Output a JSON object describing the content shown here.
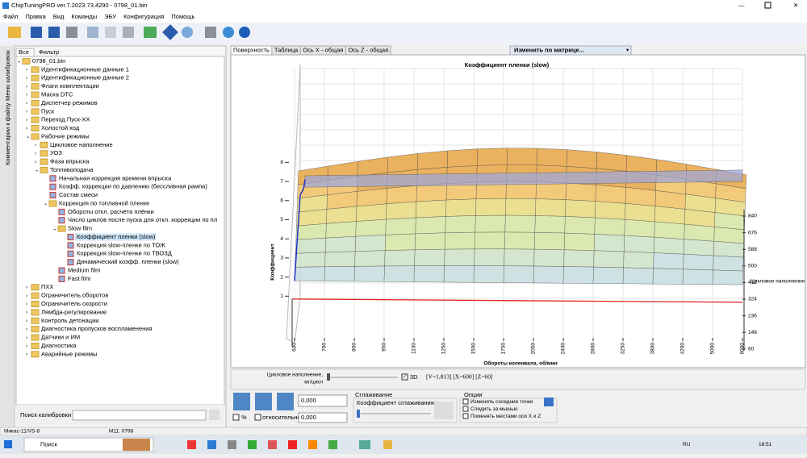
{
  "window": {
    "title": "ChipTuningPRO ver.7.2023.73.4290 - 0798_01.bin"
  },
  "menu": [
    "Файл",
    "Правка",
    "Вид",
    "Команды",
    "ЭБУ",
    "Конфигурация",
    "Помощь"
  ],
  "side_tabs": [
    "Меню калибровок",
    "Комментарии к файлу"
  ],
  "left_tabs": [
    "Все",
    "Фильтр"
  ],
  "tree": {
    "label": "0798_01.bin",
    "children": [
      {
        "label": "Идентификационные данные 1"
      },
      {
        "label": "Идентификационные данные 2"
      },
      {
        "label": "Флаги комплектации"
      },
      {
        "label": "Маска DTC"
      },
      {
        "label": "Диспетчер режимов"
      },
      {
        "label": "Пуск"
      },
      {
        "label": "Переход Пуск-ХХ"
      },
      {
        "label": "Холостой ход"
      },
      {
        "label": "Рабочие режимы",
        "children": [
          {
            "label": "Цикловое наполнение"
          },
          {
            "label": "УОЗ"
          },
          {
            "label": "Фаза впрыска"
          },
          {
            "label": "Топливоподача",
            "children": [
              {
                "label": "Начальная коррекция времени впрыска"
              },
              {
                "label": "Коэфф. коррекции по давлению (бессливная рампа)"
              },
              {
                "label": "Состав смеси"
              },
              {
                "label": "Коррекция по топливной пленке",
                "children": [
                  {
                    "label": "Обороты откл. расчёта плёнки"
                  },
                  {
                    "label": "Число циклов после пуска для откл. коррекции по пл"
                  },
                  {
                    "label": "Slow film",
                    "children": [
                      {
                        "label": "Коэффициент пленки (slow)",
                        "selected": true
                      },
                      {
                        "label": "Коррекция slow-пленки по ТОЖ"
                      },
                      {
                        "label": "Коррекция slow-пленки по ТВОЗД"
                      },
                      {
                        "label": "Динамический коэфф. пленки (slow)"
                      }
                    ]
                  },
                  {
                    "label": "Medium film"
                  },
                  {
                    "label": "Fast film"
                  }
                ]
              }
            ]
          }
        ]
      },
      {
        "label": "ПХХ"
      },
      {
        "label": "Ограничитель оборотов"
      },
      {
        "label": "Ограничитель скорости"
      },
      {
        "label": "Лямбда-регулирование"
      },
      {
        "label": "Контроль детонации"
      },
      {
        "label": "Диагностика пропусков воспламенения"
      },
      {
        "label": "Датчики и ИМ"
      },
      {
        "label": "Диагностика"
      },
      {
        "label": "Аварийные режимы"
      }
    ]
  },
  "search_label": "Поиск калибровки",
  "view_tabs": [
    "Поверхность",
    "Таблица",
    "Ось X - общая",
    "Ось Z - общая"
  ],
  "matrix_dropdown": "Изменить по матрице...",
  "surface": {
    "title": "Коэффициент пленки (slow)",
    "y_label": "Коэффициент",
    "x_label": "Обороты коленвала, об/мин",
    "z_label": "Цикловое наполнение",
    "y_ticks": [
      1,
      2,
      3,
      4,
      5,
      6,
      7,
      8
    ],
    "x_ticks": [
      600,
      700,
      800,
      950,
      1100,
      1250,
      1500,
      1750,
      2050,
      2400,
      2800,
      3250,
      3800,
      4200,
      5000,
      6000
    ],
    "z_ticks": [
      840,
      676,
      588,
      500,
      412,
      324,
      236,
      148,
      60
    ]
  },
  "controls": {
    "slider_label": [
      "Цикловое наполнение,",
      "мг/цикл"
    ],
    "check_3d": "3D",
    "cursor_info": "[V=1,813] [X=600] [Z=60]",
    "value_input": "0,000",
    "percent": "%",
    "relative": "относительно",
    "relative_input": "0,000",
    "smoothing_title": "Сглаживание",
    "smoothing_coef": "Коэффициент сглаживания",
    "options_title": "Опции",
    "options": [
      "Изменять соседние точки",
      "Следить за мышью",
      "Поменять местами оси X и Z"
    ]
  },
  "status": [
    "Микас-11/VS-8",
    "M11: 0798"
  ],
  "taskbar": {
    "search": "Поиск",
    "lang": "RU",
    "time": "18:51"
  }
}
